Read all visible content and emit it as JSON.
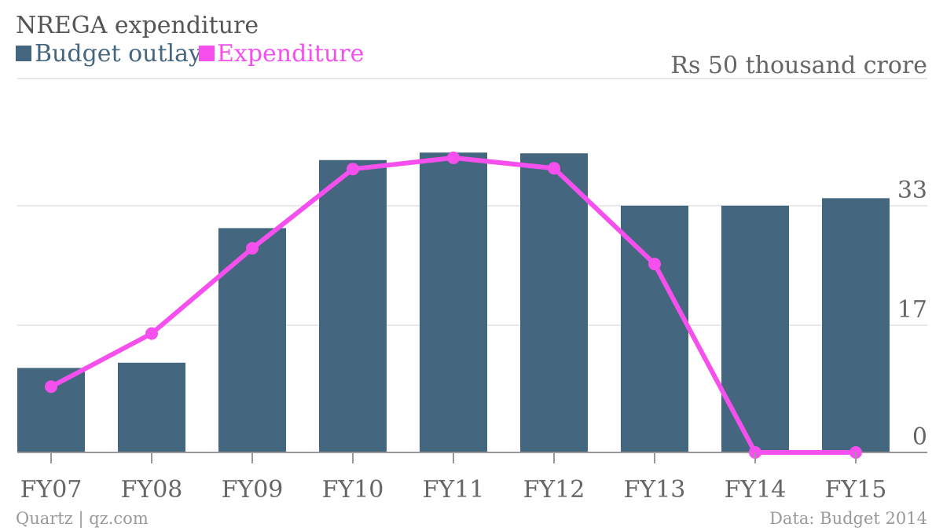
{
  "title": "NREGA expenditure",
  "legend": [
    {
      "label": "Budget outlay",
      "color": "#45667f"
    },
    {
      "label": "Expenditure",
      "color": "#f550ee"
    }
  ],
  "unit_label": "Rs 50 thousand crore",
  "footer": {
    "source_left": "Quartz | qz.com",
    "source_right": "Data: Budget 2014"
  },
  "chart_data": {
    "type": "bar",
    "title": "NREGA expenditure",
    "categories": [
      "FY07",
      "FY08",
      "FY09",
      "FY10",
      "FY11",
      "FY12",
      "FY13",
      "FY14",
      "FY15"
    ],
    "series": [
      {
        "name": "Budget outlay",
        "type": "bar",
        "color": "#45667f",
        "values": [
          11.3,
          12.0,
          30.0,
          39.1,
          40.1,
          40.0,
          33.0,
          33.0,
          34.0
        ]
      },
      {
        "name": "Expenditure",
        "type": "line",
        "color": "#f550ee",
        "values": [
          8.8,
          15.9,
          27.3,
          37.9,
          39.4,
          38.0,
          25.2,
          0,
          0
        ]
      }
    ],
    "yticks": [
      0,
      17,
      33
    ],
    "ylim": [
      0,
      50
    ],
    "y_axis_position": "right",
    "grid": true,
    "legend_position": "top-left"
  }
}
